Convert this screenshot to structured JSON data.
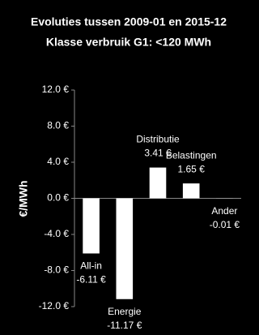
{
  "chart_data": {
    "type": "bar",
    "title": [
      "Evoluties tussen 2009-01 en 2015-12",
      "Klasse verbruik G1: <120 MWh"
    ],
    "y_label": "€/MWh",
    "categories": [
      "All-in",
      "Energie",
      "Distributie",
      "Belastingen",
      "Ander"
    ],
    "values": [
      -6.11,
      -11.17,
      3.41,
      1.65,
      -0.01
    ],
    "value_labels": [
      "-6.11 €",
      "-11.17 €",
      "3.41 €",
      "1.65 €",
      "-0.01 €"
    ],
    "color": "#ffffff",
    "ylim": [
      -12,
      12
    ],
    "yticks": [
      {
        "value": 12,
        "label": "12.0 €"
      },
      {
        "value": 8,
        "label": "8.0 €"
      },
      {
        "value": 4,
        "label": "4.0 €"
      },
      {
        "value": 0,
        "label": "0.0 €"
      },
      {
        "value": -4,
        "label": "-4.0 €"
      },
      {
        "value": -8,
        "label": "-8.0 €"
      },
      {
        "value": -12,
        "label": "-12.0 €"
      }
    ],
    "grid": false
  }
}
